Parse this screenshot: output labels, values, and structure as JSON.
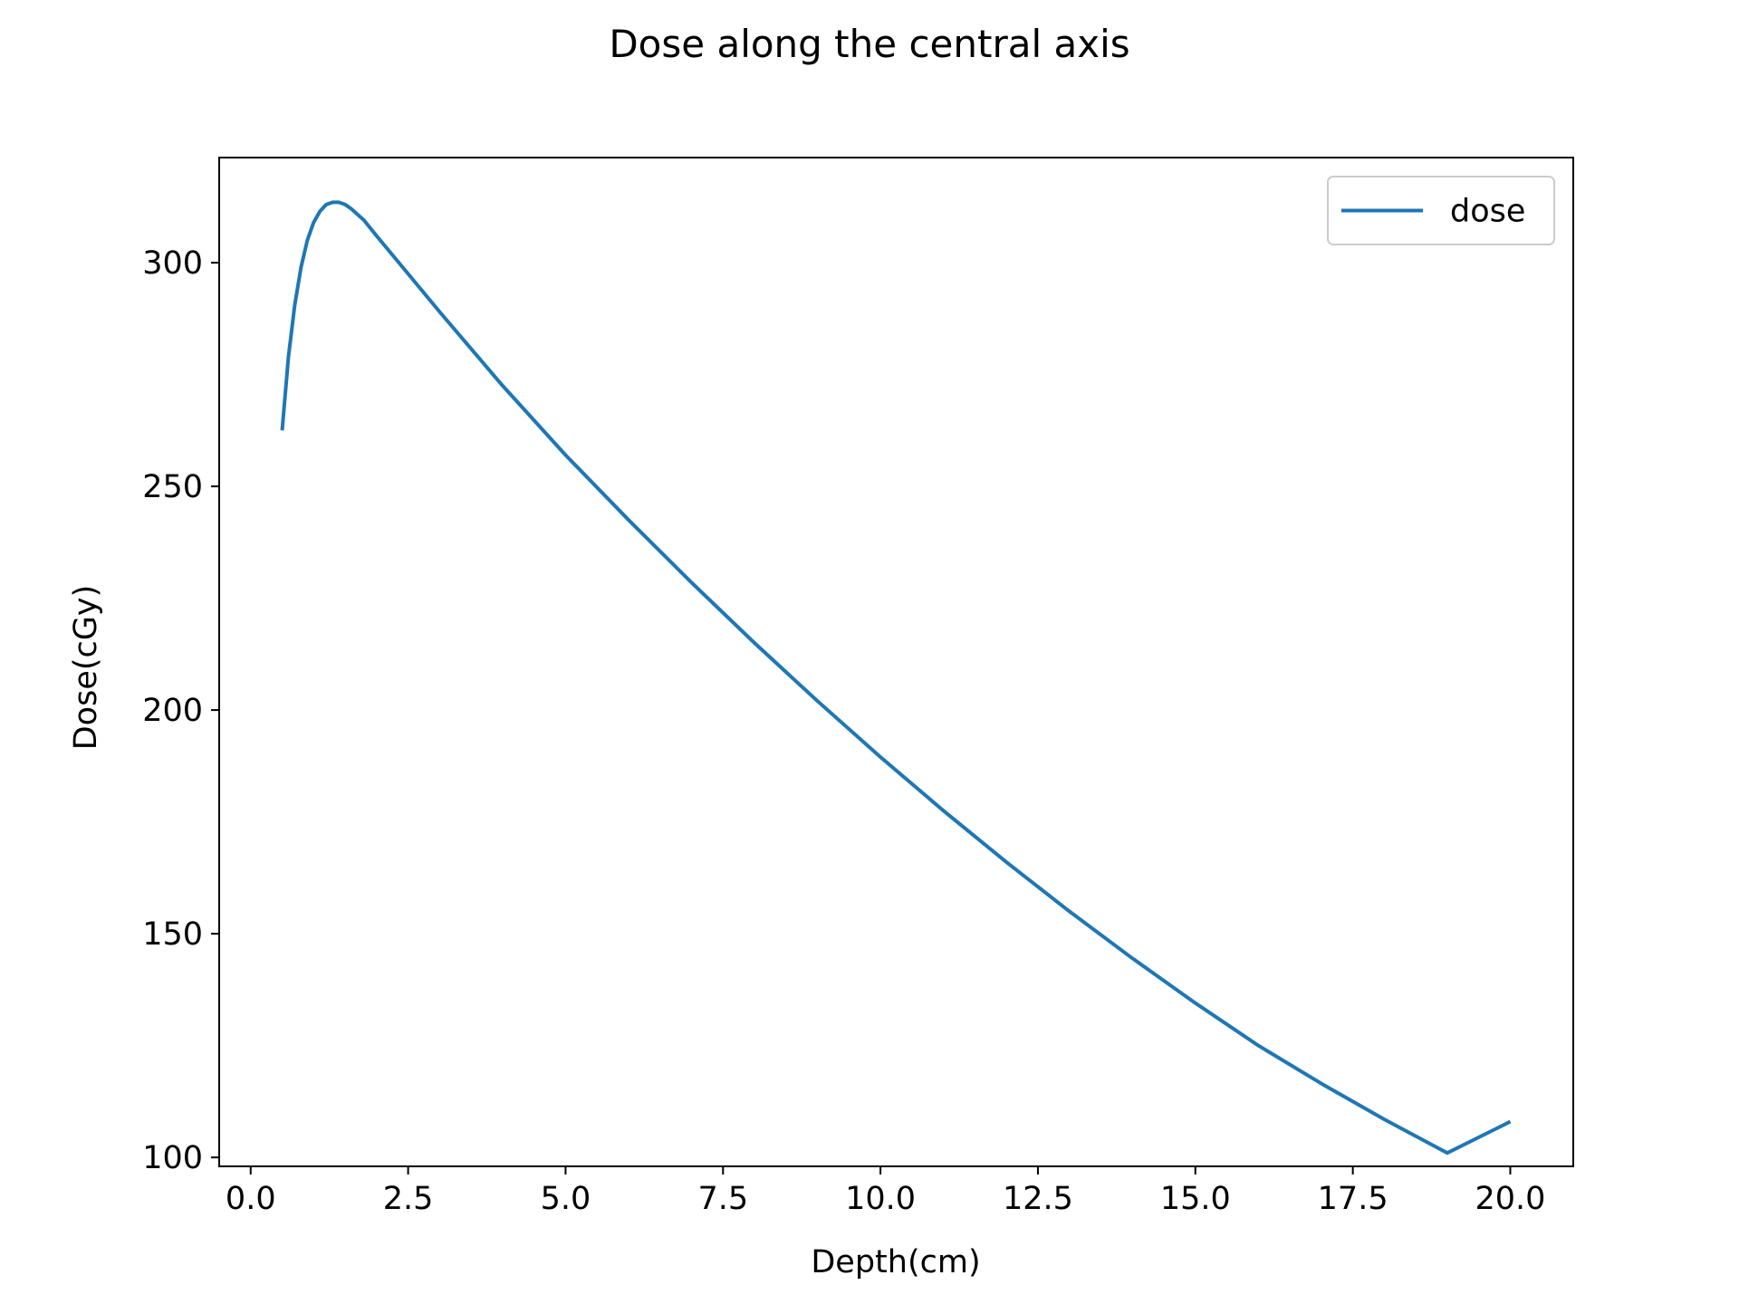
{
  "chart_data": {
    "type": "line",
    "title": "Dose along the central axis",
    "xlabel": "Depth(cm)",
    "ylabel": "Dose(cGy)",
    "xlim": [
      -0.5,
      21.0
    ],
    "ylim": [
      98,
      323.5
    ],
    "xticks": [
      0.0,
      2.5,
      5.0,
      7.5,
      10.0,
      12.5,
      15.0,
      17.5,
      20.0
    ],
    "xtick_labels": [
      "0.0",
      "2.5",
      "5.0",
      "7.5",
      "10.0",
      "12.5",
      "15.0",
      "17.5",
      "20.0"
    ],
    "yticks": [
      100,
      150,
      200,
      250,
      300
    ],
    "ytick_labels": [
      "100",
      "150",
      "200",
      "250",
      "300"
    ],
    "grid": false,
    "legend_position": "top-right",
    "series": [
      {
        "name": "dose",
        "color": "#1f77b4",
        "x": [
          0.5,
          0.6,
          0.7,
          0.8,
          0.9,
          1.0,
          1.1,
          1.2,
          1.3,
          1.4,
          1.5,
          1.6,
          1.8,
          2.0,
          2.5,
          3.0,
          4.0,
          5.0,
          6.0,
          7.0,
          8.0,
          9.0,
          10.0,
          11.0,
          12.0,
          13.0,
          14.0,
          15.0,
          16.0,
          17.0,
          18.0,
          19.0,
          20.0
        ],
        "y": [
          262.5,
          279,
          290.5,
          299,
          305,
          309,
          311.5,
          313,
          313.5,
          313.5,
          313,
          312,
          309.5,
          306,
          297.5,
          289,
          272.5,
          257,
          242.5,
          228.5,
          215,
          202,
          189.5,
          177.5,
          166,
          155,
          144.5,
          134.5,
          125,
          116.5,
          108.5,
          101,
          108
        ]
      }
    ]
  }
}
